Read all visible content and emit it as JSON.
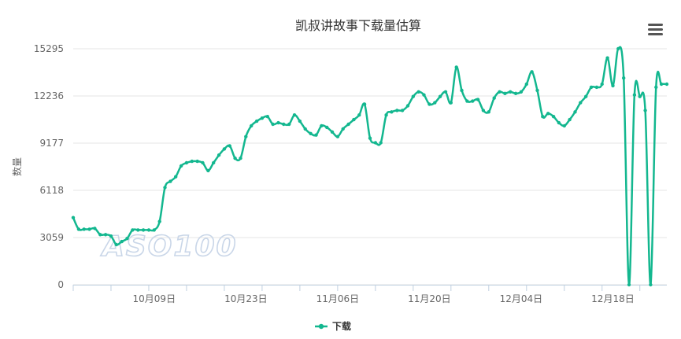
{
  "chart_data": {
    "type": "line",
    "title": "凯叔讲故事下载量估算",
    "ylabel": "数量",
    "xlabel": "",
    "ylim": [
      0,
      15295
    ],
    "yticks": [
      "0",
      "3059",
      "6118",
      "9177",
      "12236",
      "15295"
    ],
    "xticks": [
      "10月09日",
      "10月23日",
      "11月06日",
      "11月20日",
      "12月04日",
      "12月18日"
    ],
    "grid": true,
    "legend": "bottom",
    "color": "#13b78f",
    "watermark": "ASO100",
    "series": [
      {
        "name": "下载",
        "values": [
          4350,
          3600,
          3600,
          3600,
          3650,
          3250,
          3250,
          3150,
          2600,
          2800,
          3000,
          3550,
          3550,
          3550,
          3550,
          3550,
          4100,
          6300,
          6700,
          7000,
          7700,
          7900,
          8000,
          8000,
          7900,
          7400,
          7900,
          8400,
          8800,
          9000,
          8200,
          8200,
          9600,
          10300,
          10600,
          10800,
          10900,
          10400,
          10500,
          10400,
          10400,
          11000,
          10600,
          10100,
          9800,
          9700,
          10300,
          10200,
          9900,
          9600,
          10100,
          10400,
          10700,
          11000,
          11700,
          9500,
          9200,
          9200,
          11000,
          11200,
          11300,
          11300,
          11600,
          12200,
          12500,
          12300,
          11700,
          11800,
          12200,
          12500,
          11800,
          14100,
          12600,
          11900,
          11900,
          12000,
          11300,
          11200,
          12100,
          12500,
          12400,
          12500,
          12400,
          12500,
          13000,
          13800,
          12600,
          10900,
          11100,
          10900,
          10500,
          10300,
          10700,
          11200,
          11800,
          12200,
          12800,
          12800,
          13000,
          14700,
          12900,
          15300,
          13400,
          0,
          12300,
          12200,
          11300,
          0,
          12800,
          13000,
          13000
        ]
      }
    ]
  },
  "menu": {
    "icon": "menu-icon"
  }
}
